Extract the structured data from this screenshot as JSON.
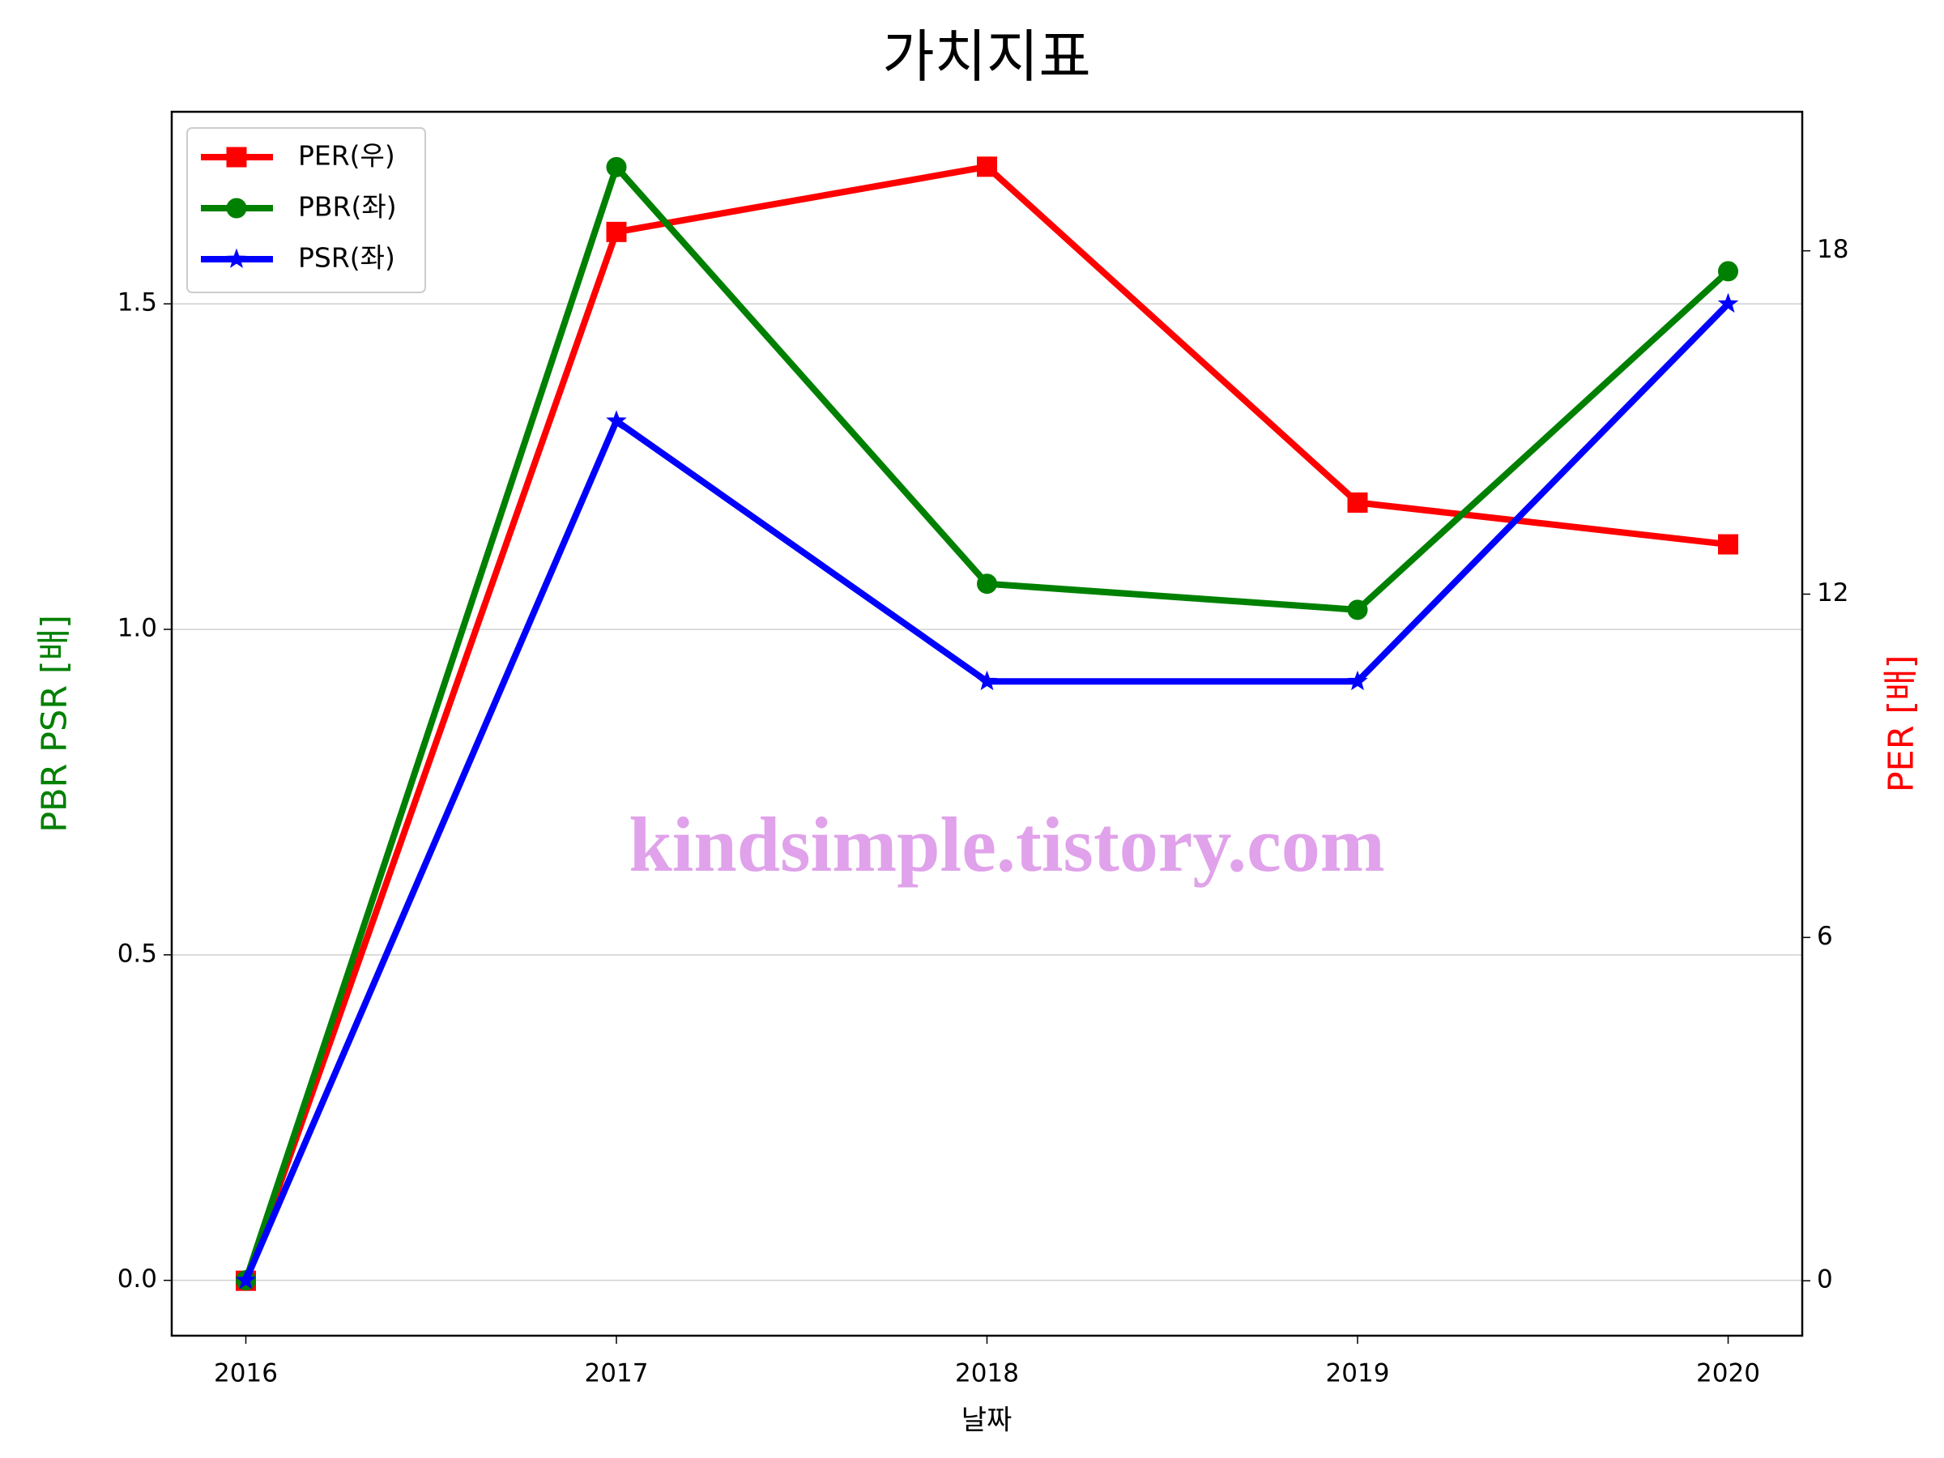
{
  "chart_data": {
    "type": "line",
    "title": "가치지표",
    "xlabel": "날짜",
    "ylabel": "PBR PSR [배]",
    "ylabel_color": "green",
    "y2label": "PER [배]",
    "y2label_color": "red",
    "x": [
      2016,
      2017,
      2018,
      2019,
      2020
    ],
    "xlim": [
      2015.8,
      2020.2
    ],
    "xticks": [
      2016,
      2017,
      2018,
      2019,
      2020
    ],
    "ylim": [
      -0.085,
      1.795
    ],
    "yticks": [
      {
        "value": 0,
        "label": "0.0"
      },
      0.5,
      {
        "value": 1,
        "label": "1.0"
      },
      1.5
    ],
    "y2lim": [
      -0.96,
      20.43
    ],
    "y2ticks": [
      0,
      6,
      12,
      18
    ],
    "grid": true,
    "legend": "upper left",
    "annotation": "kindsimple.tistory.com",
    "series": [
      {
        "name": "PER(우)",
        "color": "red",
        "marker": "square",
        "axis": "y2",
        "values": [
          0,
          18.33,
          19.47,
          13.6,
          12.87
        ]
      },
      {
        "name": "PBR(좌)",
        "color": "green",
        "marker": "circle",
        "values": [
          0,
          1.71,
          1.07,
          1.03,
          1.55
        ]
      },
      {
        "name": "PSR(좌)",
        "color": "blue",
        "marker": "star",
        "values": [
          0,
          1.32,
          0.92,
          0.92,
          1.5
        ]
      }
    ]
  }
}
